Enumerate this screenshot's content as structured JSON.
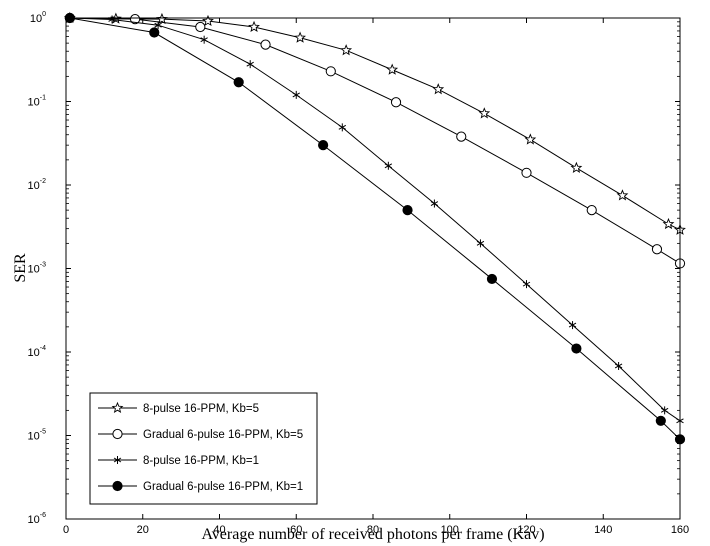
{
  "chart_data": {
    "type": "line",
    "title": "",
    "xlabel": "Average number of received photons per frame (Kav)",
    "ylabel": "SER",
    "xlim": [
      0,
      160
    ],
    "ylim": [
      1e-06,
      1
    ],
    "yscale": "log",
    "grid": false,
    "legend_position": "bottom-left",
    "x_ticks": [
      0,
      20,
      40,
      60,
      80,
      100,
      120,
      140,
      160
    ],
    "y_ticks": [
      {
        "base": "10",
        "exp": "0",
        "value": 1
      },
      {
        "base": "10",
        "exp": "-1",
        "value": 0.1
      },
      {
        "base": "10",
        "exp": "-2",
        "value": 0.01
      },
      {
        "base": "10",
        "exp": "-3",
        "value": 0.001
      },
      {
        "base": "10",
        "exp": "-4",
        "value": 0.0001
      },
      {
        "base": "10",
        "exp": "-5",
        "value": 1e-05
      },
      {
        "base": "10",
        "exp": "-6",
        "value": 1e-06
      }
    ],
    "series": [
      {
        "name": "8-pulse 16-PPM, Kb=5",
        "marker": "star",
        "x": [
          1,
          13,
          25,
          37,
          49,
          61,
          73,
          85,
          97,
          109,
          121,
          133,
          145,
          157,
          160
        ],
        "y": [
          1.0,
          0.98,
          0.97,
          0.92,
          0.78,
          0.58,
          0.41,
          0.24,
          0.14,
          0.072,
          0.035,
          0.016,
          0.0075,
          0.0034,
          0.0029
        ]
      },
      {
        "name": "Gradual 6-pulse 16-PPM, Kb=5",
        "marker": "circle-open",
        "x": [
          1,
          18,
          35,
          52,
          69,
          86,
          103,
          120,
          137,
          154,
          160
        ],
        "y": [
          1.0,
          0.97,
          0.78,
          0.48,
          0.23,
          0.098,
          0.038,
          0.014,
          0.005,
          0.0017,
          0.00115
        ]
      },
      {
        "name": "8-pulse 16-PPM, Kb=1",
        "marker": "asterisk",
        "x": [
          1,
          12,
          24,
          36,
          48,
          60,
          72,
          84,
          96,
          108,
          120,
          132,
          144,
          156,
          160
        ],
        "y": [
          1.0,
          0.96,
          0.82,
          0.55,
          0.28,
          0.12,
          0.049,
          0.017,
          0.006,
          0.002,
          0.00065,
          0.00021,
          6.8e-05,
          2e-05,
          1.5e-05
        ]
      },
      {
        "name": "Gradual 6-pulse 16-PPM, Kb=1",
        "marker": "circle-filled",
        "x": [
          1,
          23,
          45,
          67,
          89,
          111,
          133,
          155,
          160
        ],
        "y": [
          1.0,
          0.67,
          0.17,
          0.03,
          0.005,
          0.00075,
          0.00011,
          1.5e-05,
          9e-06
        ]
      }
    ]
  }
}
